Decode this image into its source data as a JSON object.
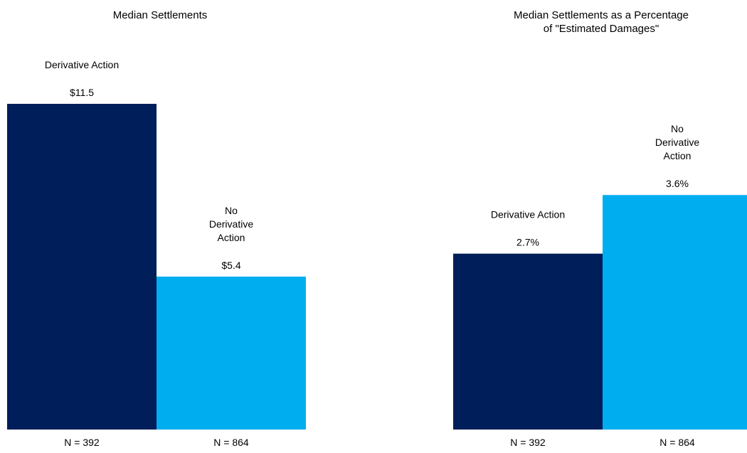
{
  "chart_data": [
    {
      "type": "bar",
      "title": [
        "Median Settlements"
      ],
      "categories": [
        "Derivative Action",
        "No Derivative Action"
      ],
      "category_label_lines": [
        [
          "Derivative Action"
        ],
        [
          "No",
          "Derivative",
          "Action"
        ]
      ],
      "values": [
        11.5,
        5.4
      ],
      "value_labels": [
        "$11.5",
        "$5.4"
      ],
      "n_labels": [
        "N = 392",
        "N = 864"
      ],
      "colors": [
        "#001E5A",
        "#00AEEF"
      ],
      "ylim": [
        0,
        11.5
      ]
    },
    {
      "type": "bar",
      "title": [
        "Median Settlements as a Percentage",
        "of \"Estimated Damages\""
      ],
      "categories": [
        "Derivative Action",
        "No Derivative Action"
      ],
      "category_label_lines": [
        [
          "Derivative Action"
        ],
        [
          "No",
          "Derivative",
          "Action"
        ]
      ],
      "values": [
        2.7,
        3.6
      ],
      "value_labels": [
        "2.7%",
        "3.6%"
      ],
      "n_labels": [
        "N = 392",
        "N = 864"
      ],
      "colors": [
        "#001E5A",
        "#00AEEF"
      ],
      "ylim": [
        0,
        5.0
      ]
    }
  ]
}
